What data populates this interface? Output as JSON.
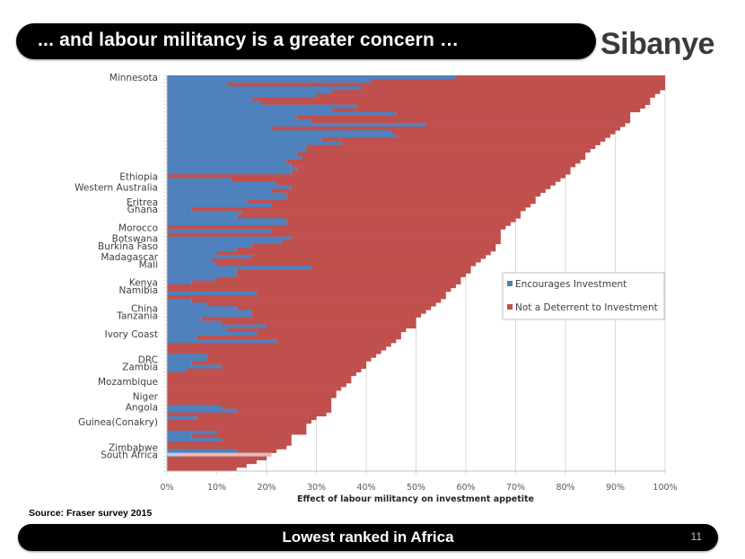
{
  "header": {
    "title": "... and labour militancy is a greater concern …",
    "logo": "Sibanye"
  },
  "source": "Source: Fraser survey 2015",
  "footer": {
    "text": "Lowest ranked in Africa",
    "page_number": "11"
  },
  "colors": {
    "encourages": "#4f81bd",
    "not_deterrent": "#c0504d",
    "highlight_encourages": "#b8cce4",
    "highlight_not_deterrent": "#e6b9b8",
    "grid": "#d9d9d9"
  },
  "chart_data": {
    "type": "bar",
    "orientation": "horizontal",
    "stacked": true,
    "xlabel": "Effect of labour militancy on investment appetite",
    "ylabel": "",
    "xlim": [
      0,
      100
    ],
    "x_ticks": [
      "0%",
      "10%",
      "20%",
      "30%",
      "40%",
      "50%",
      "60%",
      "70%",
      "80%",
      "90%",
      "100%"
    ],
    "grid": "vertical",
    "legend_position": "right-middle",
    "legend": [
      "Encourages Investment",
      "Not a Deterrent to Investment"
    ],
    "row_count": 108,
    "labeled_rows": [
      {
        "row": 0,
        "label": "Minnesota"
      },
      {
        "row": 27,
        "label": "Ethiopia"
      },
      {
        "row": 30,
        "label": "Western Australia"
      },
      {
        "row": 34,
        "label": "Eritrea"
      },
      {
        "row": 36,
        "label": "Ghana"
      },
      {
        "row": 41,
        "label": "Morocco"
      },
      {
        "row": 44,
        "label": "Botswana"
      },
      {
        "row": 46,
        "label": "Burkina Faso"
      },
      {
        "row": 49,
        "label": "Madagascar"
      },
      {
        "row": 51,
        "label": "Mali"
      },
      {
        "row": 56,
        "label": "Kenya"
      },
      {
        "row": 58,
        "label": "Namibia"
      },
      {
        "row": 63,
        "label": "China"
      },
      {
        "row": 65,
        "label": "Tanzania"
      },
      {
        "row": 70,
        "label": "Ivory Coast"
      },
      {
        "row": 77,
        "label": "DRC"
      },
      {
        "row": 79,
        "label": "Zambia"
      },
      {
        "row": 83,
        "label": "Mozambique"
      },
      {
        "row": 87,
        "label": "Niger"
      },
      {
        "row": 90,
        "label": "Angola"
      },
      {
        "row": 94,
        "label": "Guinea(Conakry)"
      },
      {
        "row": 101,
        "label": "Zimbabwe"
      },
      {
        "row": 103,
        "label": "South Africa"
      }
    ],
    "highlighted_row": 103,
    "series": [
      {
        "name": "Encourages Investment",
        "values": [
          58,
          41,
          12,
          39,
          33,
          30,
          17,
          19,
          38,
          33,
          46,
          26,
          29,
          52,
          21,
          45,
          46,
          31,
          35,
          28,
          28,
          26,
          27,
          24,
          25,
          26,
          25,
          0,
          13,
          22,
          25,
          21,
          24,
          24,
          16,
          21,
          5,
          15,
          14,
          24,
          24,
          0,
          21,
          0,
          25,
          23,
          17,
          14,
          10,
          17,
          9,
          10,
          29,
          14,
          14,
          10,
          5,
          0,
          0,
          18,
          0,
          5,
          8,
          14,
          17,
          17,
          7,
          11,
          20,
          12,
          18,
          6,
          22,
          0,
          0,
          0,
          8,
          8,
          5,
          11,
          4,
          0,
          0,
          0,
          0,
          0,
          0,
          0,
          0,
          0,
          11,
          14,
          0,
          6,
          0,
          0,
          0,
          10,
          5,
          11,
          0,
          0,
          14,
          3,
          0,
          0,
          0,
          0
        ],
        "stack_totals": [
          100,
          100,
          100,
          100,
          99,
          98,
          97,
          97,
          96,
          95,
          93,
          93,
          93,
          92,
          91,
          90,
          89,
          88,
          87,
          86,
          85,
          84,
          84,
          83,
          82,
          81,
          81,
          80,
          79,
          78,
          77,
          76,
          75,
          74,
          74,
          73,
          72,
          71,
          71,
          70,
          69,
          68,
          67,
          67,
          67,
          67,
          66,
          66,
          65,
          64,
          63,
          62,
          61,
          61,
          60,
          59,
          59,
          58,
          57,
          56,
          56,
          55,
          54,
          53,
          52,
          51,
          50,
          50,
          50,
          48,
          47,
          47,
          46,
          45,
          44,
          43,
          42,
          41,
          40,
          40,
          39,
          38,
          37,
          37,
          36,
          35,
          34,
          34,
          33,
          33,
          33,
          33,
          32,
          30,
          29,
          28,
          28,
          28,
          25,
          25,
          25,
          24,
          22,
          21,
          20,
          18,
          16,
          14
        ],
        "values_note": "Encourages = blue segment length (%)"
      },
      {
        "name": "Not a Deterrent to Investment",
        "values_note": "Not a Deterrent = stack_total - Encourages (%)"
      }
    ]
  }
}
